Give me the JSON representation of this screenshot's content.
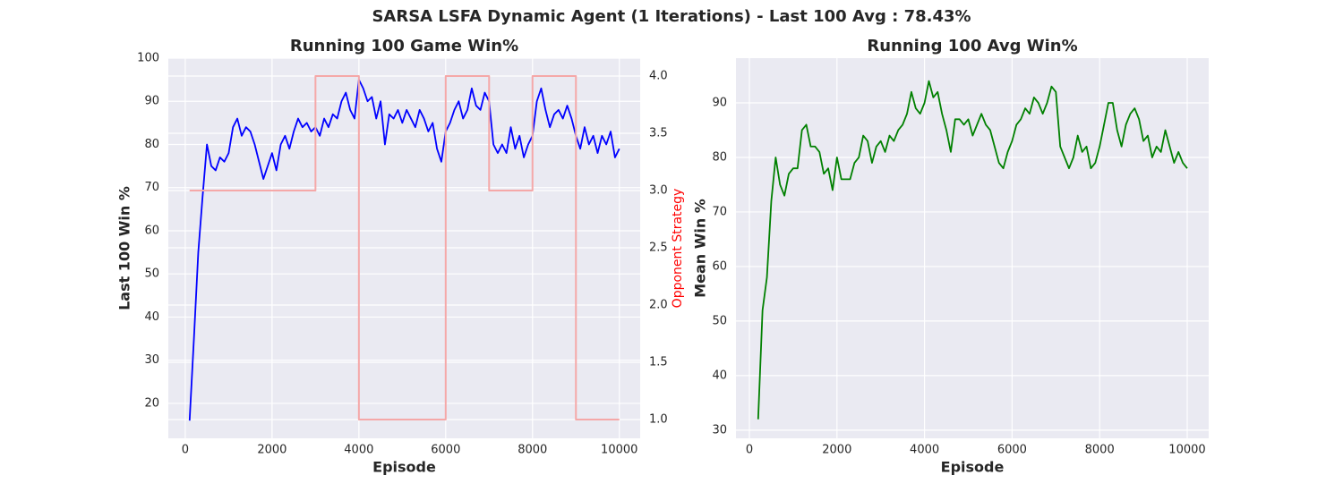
{
  "title": "SARSA LSFA Dynamic Agent (1 Iterations) -  Last 100 Avg : 78.43%",
  "chart_data": [
    {
      "type": "line",
      "title": "Running 100 Game Win%",
      "xlabel": "Episode",
      "ylabel": "Last 100 Win %",
      "y2label": "Opponent Strategy",
      "xlim": [
        -390,
        10480
      ],
      "xticks": [
        0,
        2000,
        4000,
        6000,
        8000,
        10000
      ],
      "ylim": [
        11.9,
        100
      ],
      "yticks": [
        20,
        30,
        40,
        50,
        60,
        70,
        80,
        90,
        100
      ],
      "y2lim": [
        0.836,
        4.156
      ],
      "y2ticks": [
        {
          "value": 1,
          "label": "1.0"
        },
        {
          "value": 1.5,
          "label": "1.5"
        },
        {
          "value": 2,
          "label": "2.0"
        },
        {
          "value": 2.5,
          "label": "2.5"
        },
        {
          "value": 3,
          "label": "3.0"
        },
        {
          "value": 3.5,
          "label": "3.5"
        },
        {
          "value": 4,
          "label": "4.0"
        }
      ],
      "grid": true,
      "series": [
        {
          "color": "#0000ff",
          "x": [
            100,
            200,
            300,
            400,
            500,
            600,
            700,
            800,
            900,
            1000,
            1100,
            1200,
            1300,
            1400,
            1500,
            1600,
            1700,
            1800,
            1900,
            2000,
            2100,
            2200,
            2300,
            2400,
            2500,
            2600,
            2700,
            2800,
            2900,
            3000,
            3100,
            3200,
            3300,
            3400,
            3500,
            3600,
            3700,
            3800,
            3900,
            4000,
            4100,
            4200,
            4300,
            4400,
            4500,
            4600,
            4700,
            4800,
            4900,
            5000,
            5100,
            5200,
            5300,
            5400,
            5500,
            5600,
            5700,
            5800,
            5900,
            6000,
            6100,
            6200,
            6300,
            6400,
            6500,
            6600,
            6700,
            6800,
            6900,
            7000,
            7100,
            7200,
            7300,
            7400,
            7500,
            7600,
            7700,
            7800,
            7900,
            8000,
            8100,
            8200,
            8300,
            8400,
            8500,
            8600,
            8700,
            8800,
            8900,
            9000,
            9100,
            9200,
            9300,
            9400,
            9500,
            9600,
            9700,
            9800,
            9900,
            10000
          ],
          "values": [
            16,
            35,
            55,
            68,
            80,
            75,
            74,
            77,
            76,
            78,
            84,
            86,
            82,
            84,
            83,
            80,
            76,
            72,
            75,
            78,
            74,
            80,
            82,
            79,
            83,
            86,
            84,
            85,
            83,
            84,
            82,
            86,
            84,
            87,
            86,
            90,
            92,
            88,
            86,
            95,
            93,
            90,
            91,
            86,
            90,
            80,
            87,
            86,
            88,
            85,
            88,
            86,
            84,
            88,
            86,
            83,
            85,
            79,
            76,
            83,
            85,
            88,
            90,
            86,
            88,
            93,
            89,
            88,
            92,
            90,
            80,
            78,
            80,
            78,
            84,
            79,
            82,
            77,
            80,
            82,
            90,
            93,
            88,
            84,
            87,
            88,
            86,
            89,
            86,
            82,
            79,
            84,
            80,
            82,
            78,
            82,
            80,
            83,
            77,
            79
          ]
        },
        {
          "color": "#f5a8a8",
          "axis": "y2",
          "x": [
            100,
            3000,
            3000,
            4000,
            4000,
            6000,
            6000,
            7000,
            7000,
            8000,
            8000,
            9000,
            9000,
            10000
          ],
          "values": [
            3,
            3,
            4,
            4,
            1,
            1,
            4,
            4,
            3,
            3,
            4,
            4,
            1,
            1
          ]
        }
      ]
    },
    {
      "type": "line",
      "title": "Running 100 Avg Win%",
      "xlabel": "Episode",
      "ylabel": "Mean Win %",
      "xlim": [
        -307,
        10491
      ],
      "xticks": [
        0,
        2000,
        4000,
        6000,
        8000,
        10000
      ],
      "ylim": [
        28.5,
        98.2
      ],
      "yticks": [
        30,
        40,
        50,
        60,
        70,
        80,
        90
      ],
      "grid": true,
      "series": [
        {
          "color": "#008000",
          "x": [
            200,
            300,
            400,
            500,
            600,
            700,
            800,
            900,
            1000,
            1100,
            1200,
            1300,
            1400,
            1500,
            1600,
            1700,
            1800,
            1900,
            2000,
            2100,
            2200,
            2300,
            2400,
            2500,
            2600,
            2700,
            2800,
            2900,
            3000,
            3100,
            3200,
            3300,
            3400,
            3500,
            3600,
            3700,
            3800,
            3900,
            4000,
            4100,
            4200,
            4300,
            4400,
            4500,
            4600,
            4700,
            4800,
            4900,
            5000,
            5100,
            5200,
            5300,
            5400,
            5500,
            5600,
            5700,
            5800,
            5900,
            6000,
            6100,
            6200,
            6300,
            6400,
            6500,
            6600,
            6700,
            6800,
            6900,
            7000,
            7100,
            7200,
            7300,
            7400,
            7500,
            7600,
            7700,
            7800,
            7900,
            8000,
            8100,
            8200,
            8300,
            8400,
            8500,
            8600,
            8700,
            8800,
            8900,
            9000,
            9100,
            9200,
            9300,
            9400,
            9500,
            9600,
            9700,
            9800,
            9900,
            10000
          ],
          "values": [
            32,
            52,
            58,
            72,
            80,
            75,
            73,
            77,
            78,
            78,
            85,
            86,
            82,
            82,
            81,
            77,
            78,
            74,
            80,
            76,
            76,
            76,
            79,
            80,
            84,
            83,
            79,
            82,
            83,
            81,
            84,
            83,
            85,
            86,
            88,
            92,
            89,
            88,
            90,
            94,
            91,
            92,
            88,
            85,
            81,
            87,
            87,
            86,
            87,
            84,
            86,
            88,
            86,
            85,
            82,
            79,
            78,
            81,
            83,
            86,
            87,
            89,
            88,
            91,
            90,
            88,
            90,
            93,
            92,
            82,
            80,
            78,
            80,
            84,
            81,
            82,
            78,
            79,
            82,
            86,
            90,
            90,
            85,
            82,
            86,
            88,
            89,
            87,
            83,
            84,
            80,
            82,
            81,
            85,
            82,
            79,
            81,
            79,
            78
          ]
        }
      ]
    }
  ]
}
